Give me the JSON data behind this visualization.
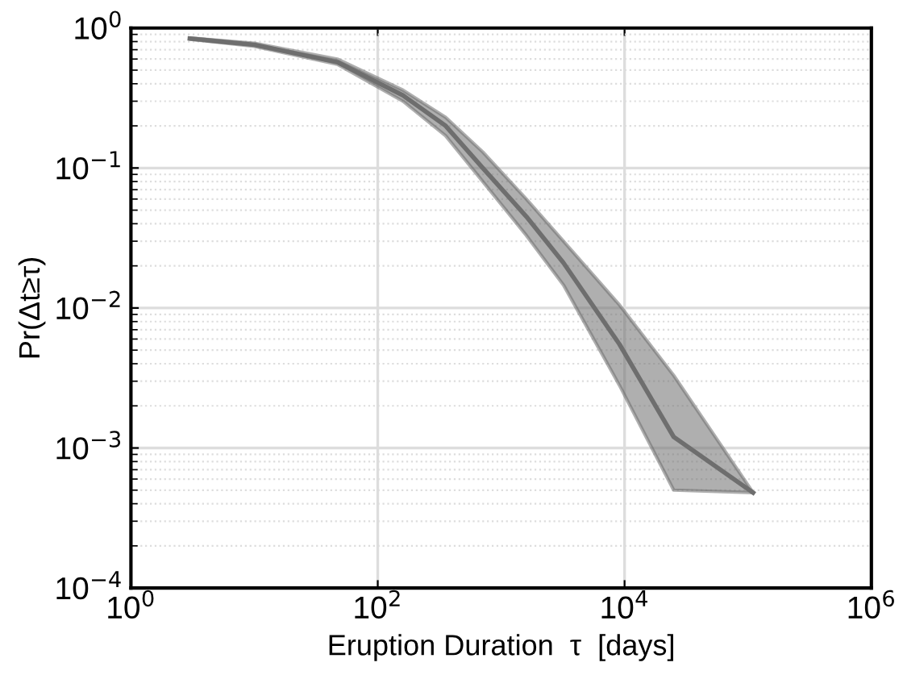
{
  "chart_data": {
    "type": "line",
    "xlabel": "Eruption Duration  τ  [days]",
    "ylabel": "Pr(Δt≥τ)",
    "log": "xy",
    "grid": true,
    "x": [
      3,
      10,
      47,
      160,
      355,
      710,
      1600,
      3200,
      9100,
      25000,
      110000
    ],
    "series": [
      {
        "color": "#6e6e6e",
        "values": [
          0.84,
          0.76,
          0.57,
          0.33,
          0.2,
          0.1,
          0.045,
          0.021,
          0.0055,
          0.0012,
          0.00048
        ],
        "lower": [
          0.83,
          0.74,
          0.55,
          0.3,
          0.17,
          0.08,
          0.033,
          0.0146,
          0.0028,
          0.0005,
          0.00048
        ],
        "upper": [
          0.85,
          0.78,
          0.6,
          0.36,
          0.23,
          0.13,
          0.06,
          0.03,
          0.0105,
          0.0033,
          0.00048
        ]
      }
    ],
    "xlim": [
      1,
      1000000
    ],
    "xticks": [
      {
        "value": 1,
        "label": "10$^{0}$"
      },
      {
        "value": 100,
        "label": "10$^{2}$"
      },
      {
        "value": 10000,
        "label": "10$^{4}$"
      },
      {
        "value": 1000000,
        "label": "10$^{6}$"
      }
    ],
    "ylim": [
      0.0001,
      1
    ],
    "yticks": [
      {
        "value": 0.0001,
        "label": "10$^{−4}$"
      },
      {
        "value": 0.001,
        "label": "10$^{−3}$"
      },
      {
        "value": 0.01,
        "label": "10$^{−2}$"
      },
      {
        "value": 0.1,
        "label": "10$^{−1}$"
      },
      {
        "value": 1,
        "label": "10$^{0}$"
      }
    ]
  }
}
